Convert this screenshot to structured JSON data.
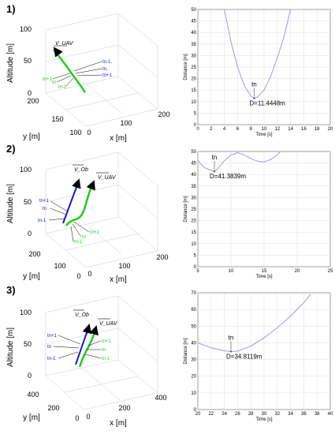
{
  "panels": [
    {
      "label": "1)",
      "view3d": {
        "zlabel": "Altitude [m]",
        "ylabel": "y [m]",
        "xlabel": "x [m]",
        "zticks": [
          "100",
          "50",
          "0"
        ],
        "yticks": [
          "200",
          "150",
          "100"
        ],
        "xticks": [
          "0",
          "100",
          "200"
        ],
        "uav_label": "V_UAV",
        "green_labels": [
          "tn+1",
          "tn",
          "tn-1"
        ],
        "blue_labels": [
          "tn-1,",
          "tn,",
          "tn+1"
        ]
      }
    },
    {
      "label": "2)",
      "view3d": {
        "zlabel": "Altitude [m]",
        "ylabel": "y [m]",
        "xlabel": "x [m]",
        "zticks": [
          "100",
          "50",
          "0"
        ],
        "yticks": [
          "200",
          "100",
          "0"
        ],
        "xticks": [
          "0",
          "100",
          "200"
        ],
        "ob_label": "V_Ob",
        "uav_label": "V_UAV",
        "blue_labels": [
          "tn+1",
          "tn",
          "tn-1"
        ],
        "green_labels": [
          "tn+1",
          "tn",
          "tn-1"
        ]
      }
    },
    {
      "label": "3)",
      "view3d": {
        "zlabel": "Altitude [m]",
        "ylabel": "y [m]",
        "xlabel": "x [m]",
        "zticks": [
          "100",
          "50",
          "0"
        ],
        "yticks": [
          "400",
          "200",
          "0"
        ],
        "xticks": [
          "0",
          "200",
          "400"
        ],
        "ob_label": "V_Ob",
        "uav_label": "V_UAV",
        "blue_labels": [
          "tn+1",
          "tn",
          "tn-1"
        ],
        "green_labels": [
          "tn+1",
          "tn",
          "tn-1"
        ]
      }
    }
  ],
  "chart_data": [
    {
      "type": "line",
      "xlabel": "Time [s]",
      "ylabel": "Distance [m]",
      "xlim": [
        0,
        20
      ],
      "ylim": [
        0,
        50
      ],
      "xticks": [
        0,
        2,
        4,
        6,
        8,
        10,
        12,
        14,
        16,
        18,
        20
      ],
      "yticks": [
        0,
        5,
        10,
        15,
        20,
        25,
        30,
        35,
        40,
        45,
        50
      ],
      "grid": true,
      "x": [
        4,
        5,
        6,
        7,
        8,
        8.5,
        9,
        10,
        11,
        12,
        13,
        14
      ],
      "y": [
        50,
        36,
        25,
        17,
        12.5,
        11.4448,
        12,
        15,
        21,
        29,
        38,
        50
      ],
      "annotation": {
        "text": "tn",
        "value_text": "D=11.4448m",
        "x": 8.5,
        "y": 11.4448
      }
    },
    {
      "type": "line",
      "xlabel": "Time [s]",
      "ylabel": "Distance [m]",
      "xlim": [
        5,
        25
      ],
      "ylim": [
        0,
        50
      ],
      "xticks": [
        5,
        10,
        15,
        20,
        25
      ],
      "yticks": [
        0,
        5,
        10,
        15,
        20,
        25,
        30,
        35,
        40,
        45,
        50
      ],
      "grid": true,
      "x": [
        5,
        6,
        7,
        7.5,
        8,
        9,
        10,
        11,
        12,
        13,
        14,
        15,
        16,
        17,
        17.5
      ],
      "y": [
        46,
        43,
        41.8,
        41.3839,
        42.5,
        46,
        48.5,
        49.5,
        48.5,
        47,
        45.8,
        45.5,
        46.5,
        48.5,
        50
      ],
      "annotation": {
        "text": "tn",
        "value_text": "D=41.3839m",
        "x": 7.5,
        "y": 41.3839
      }
    },
    {
      "type": "line",
      "xlabel": "Time [s]",
      "ylabel": "Distance [m]",
      "xlim": [
        20,
        40
      ],
      "ylim": [
        0,
        70
      ],
      "xticks": [
        20,
        22,
        24,
        26,
        28,
        30,
        32,
        34,
        36,
        38,
        40
      ],
      "yticks": [
        0,
        10,
        20,
        30,
        40,
        50,
        60,
        70
      ],
      "grid": true,
      "x": [
        20,
        22,
        24,
        25,
        26,
        28,
        30,
        32,
        34,
        36,
        37
      ],
      "y": [
        40,
        37,
        35.2,
        34.8119,
        35,
        38,
        43,
        49,
        56,
        64,
        69
      ],
      "annotation": {
        "text": "tn",
        "value_text": "D=34.8119m",
        "x": 25,
        "y": 34.8119
      }
    }
  ],
  "colors": {
    "curve": "#9a9ae6",
    "green": "#22cc22",
    "blue": "#1a1acc",
    "grid": "#dddddd"
  }
}
